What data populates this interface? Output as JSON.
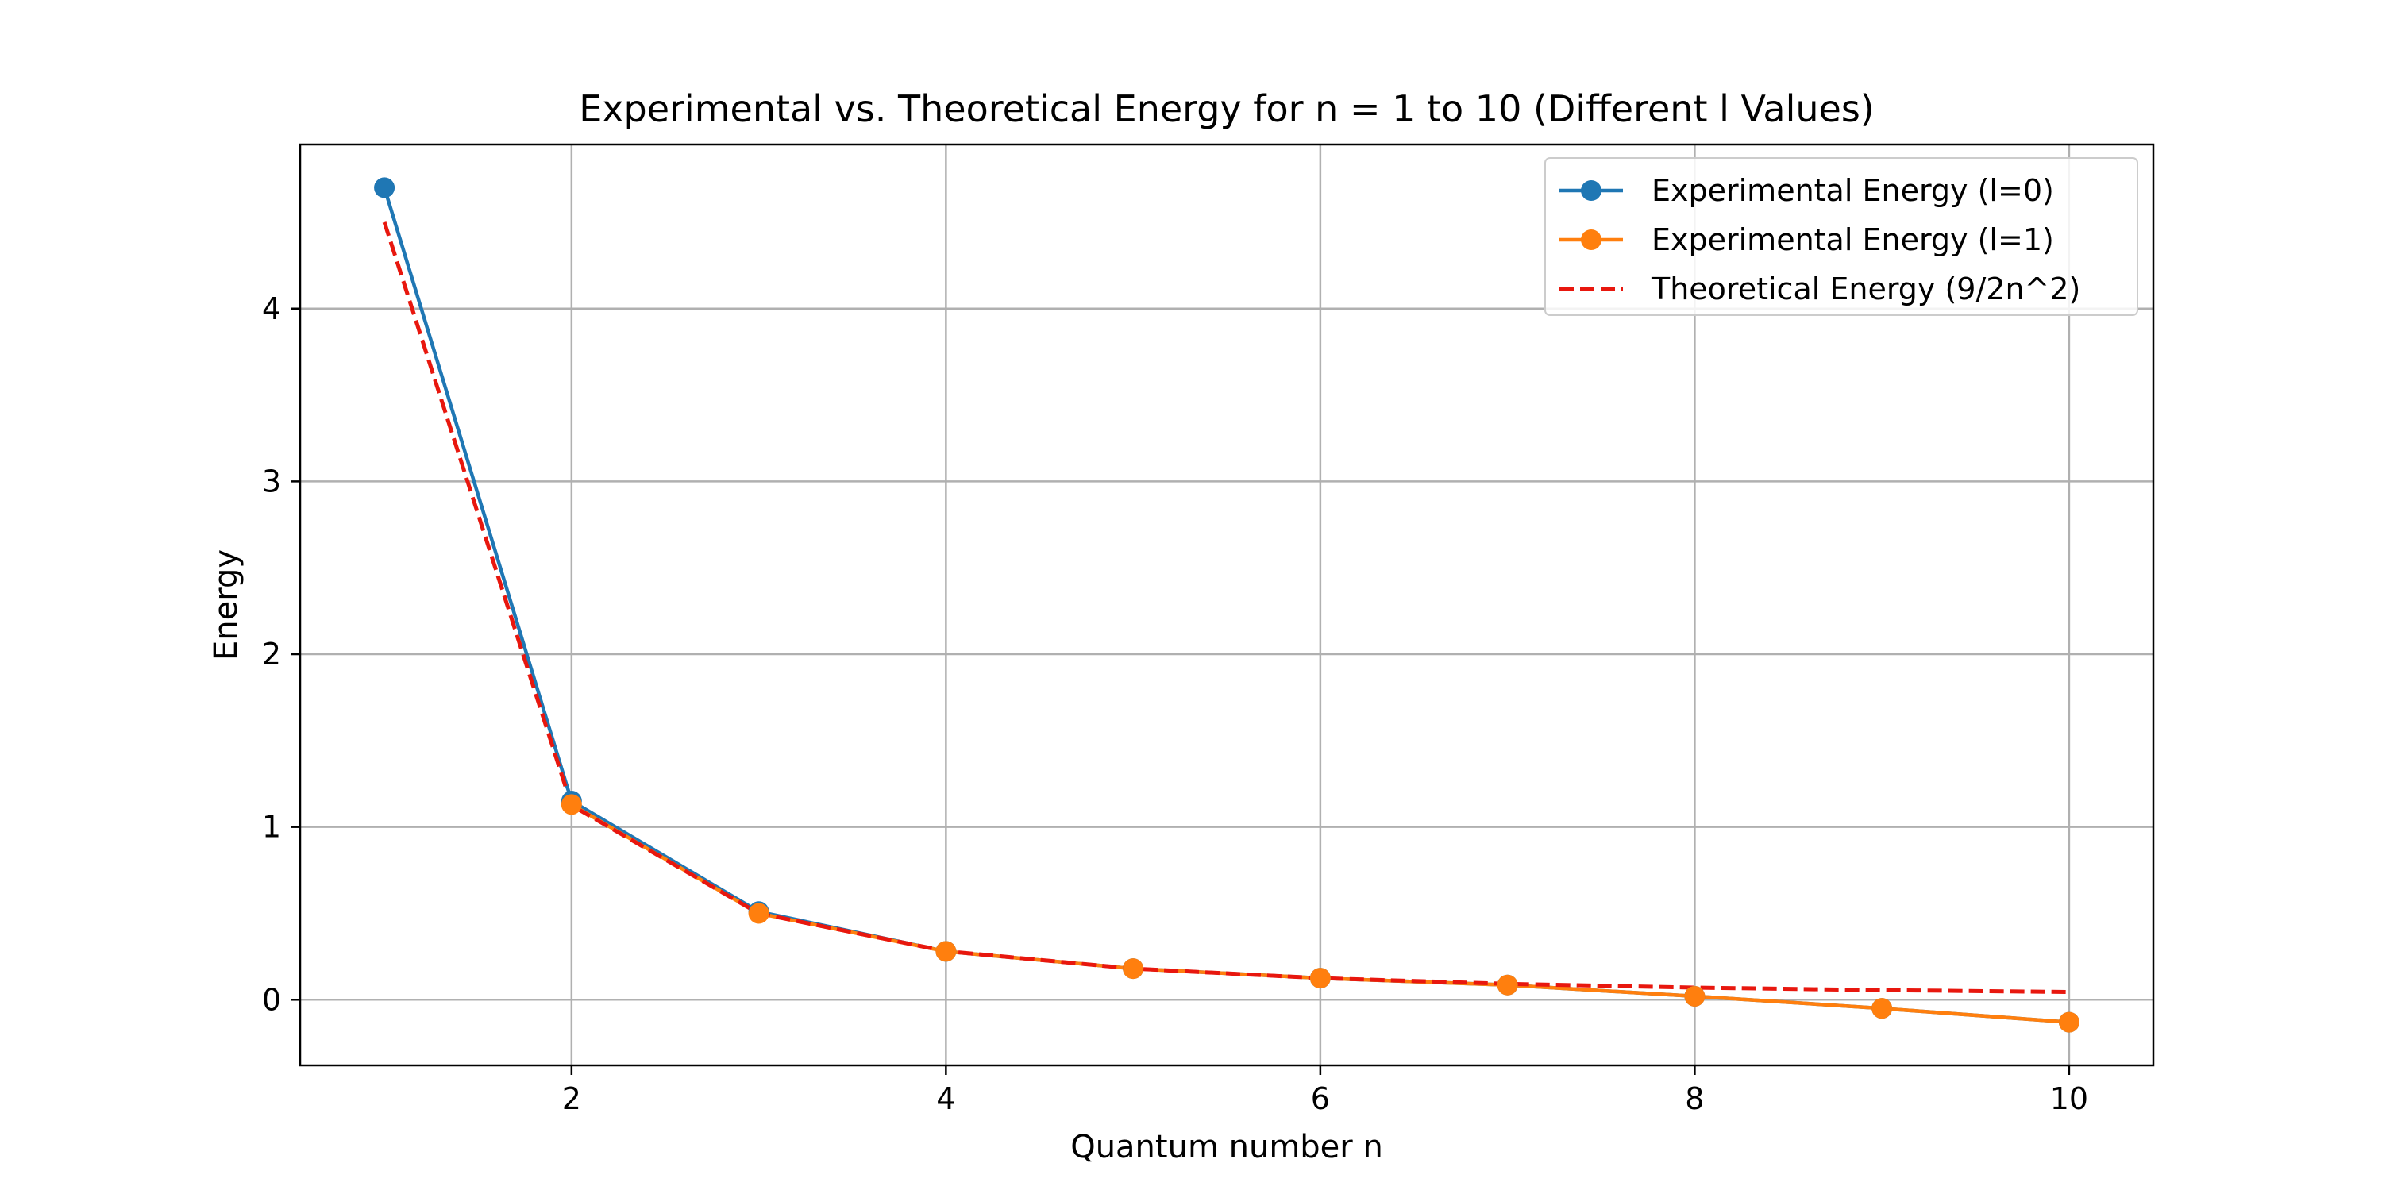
{
  "chart_data": {
    "type": "line",
    "title": "Experimental vs. Theoretical Energy for n = 1 to 10 (Different l Values)",
    "xlabel": "Quantum number n",
    "ylabel": "Energy",
    "x": [
      1,
      2,
      3,
      4,
      5,
      6,
      7,
      8,
      9,
      10
    ],
    "xlim": [
      0.55,
      10.45
    ],
    "ylim": [
      -0.38,
      4.95
    ],
    "xticks": [
      2,
      4,
      6,
      8,
      10
    ],
    "yticks": [
      0,
      1,
      2,
      3,
      4
    ],
    "grid": true,
    "legend_position": "top-right",
    "series": [
      {
        "name": "Experimental Energy (l=0)",
        "color": "#1f77b4",
        "style": "solid",
        "marker": "circle",
        "values": [
          4.7,
          1.15,
          0.51,
          0.28,
          0.18,
          0.125,
          0.085,
          0.02,
          -0.05,
          -0.13
        ]
      },
      {
        "name": "Experimental Energy (l=1)",
        "color": "#ff7f0e",
        "style": "solid",
        "marker": "circle",
        "values": [
          null,
          1.13,
          0.5,
          0.28,
          0.18,
          0.125,
          0.085,
          0.02,
          -0.05,
          -0.13
        ]
      },
      {
        "name": "Theoretical Energy (9/2n^2)",
        "color": "#e8170e",
        "style": "dashed",
        "marker": "none",
        "values": [
          4.5,
          1.125,
          0.5,
          0.28125,
          0.18,
          0.125,
          0.0918,
          0.0703,
          0.0556,
          0.045
        ]
      }
    ]
  }
}
